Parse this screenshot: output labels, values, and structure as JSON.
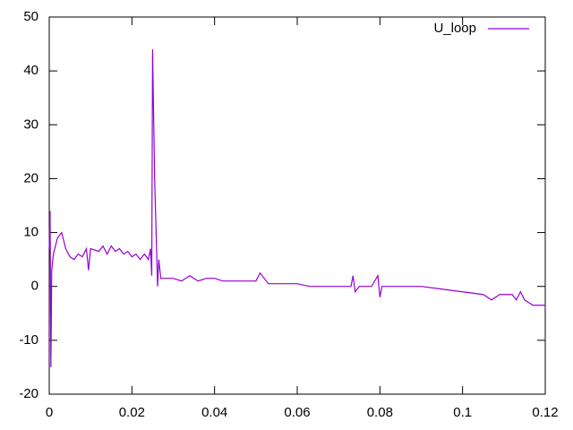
{
  "chart_data": {
    "type": "line",
    "x": [
      0,
      0.0002,
      0.0004,
      0.0006,
      0.001,
      0.002,
      0.003,
      0.004,
      0.005,
      0.006,
      0.007,
      0.008,
      0.009,
      0.0095,
      0.01,
      0.012,
      0.013,
      0.014,
      0.015,
      0.016,
      0.017,
      0.018,
      0.019,
      0.02,
      0.021,
      0.022,
      0.023,
      0.024,
      0.0245,
      0.0248,
      0.025,
      0.0255,
      0.026,
      0.0262,
      0.0265,
      0.027,
      0.03,
      0.032,
      0.034,
      0.036,
      0.038,
      0.04,
      0.042,
      0.045,
      0.048,
      0.05,
      0.051,
      0.052,
      0.053,
      0.056,
      0.06,
      0.063,
      0.065,
      0.07,
      0.073,
      0.0735,
      0.074,
      0.075,
      0.078,
      0.0795,
      0.08,
      0.0805,
      0.085,
      0.09,
      0.095,
      0.1,
      0.105,
      0.107,
      0.109,
      0.112,
      0.113,
      0.114,
      0.115,
      0.116,
      0.117,
      0.12
    ],
    "series": [
      {
        "name": "U_loop",
        "color": "#9400d3",
        "values": [
          7,
          14,
          -15,
          3,
          6,
          9,
          10,
          7,
          5.5,
          5,
          6,
          5.5,
          7,
          3,
          7,
          6.5,
          7.5,
          6,
          7.5,
          6.5,
          7,
          6,
          6.5,
          5.5,
          6,
          5,
          6,
          5,
          7,
          2,
          44,
          20,
          6,
          0,
          5,
          1.5,
          1.5,
          1,
          2,
          1,
          1.5,
          1.5,
          1,
          1,
          1,
          1,
          2.5,
          1.5,
          0.5,
          0.5,
          0.5,
          0,
          0,
          0,
          0,
          2,
          -1,
          0,
          0,
          2,
          -2,
          0,
          0,
          0,
          -0.5,
          -1,
          -1.5,
          -2.5,
          -1.5,
          -1.5,
          -2.5,
          -1,
          -2.5,
          -3,
          -3.5,
          -3.5
        ]
      }
    ],
    "xlim": [
      0,
      0.12
    ],
    "xticks": [
      0,
      0.02,
      0.04,
      0.06,
      0.08,
      0.1,
      0.12
    ],
    "ylim": [
      -20,
      50
    ],
    "yticks": [
      -20,
      -10,
      0,
      10,
      20,
      30,
      40,
      50
    ],
    "legend": "top-right"
  }
}
